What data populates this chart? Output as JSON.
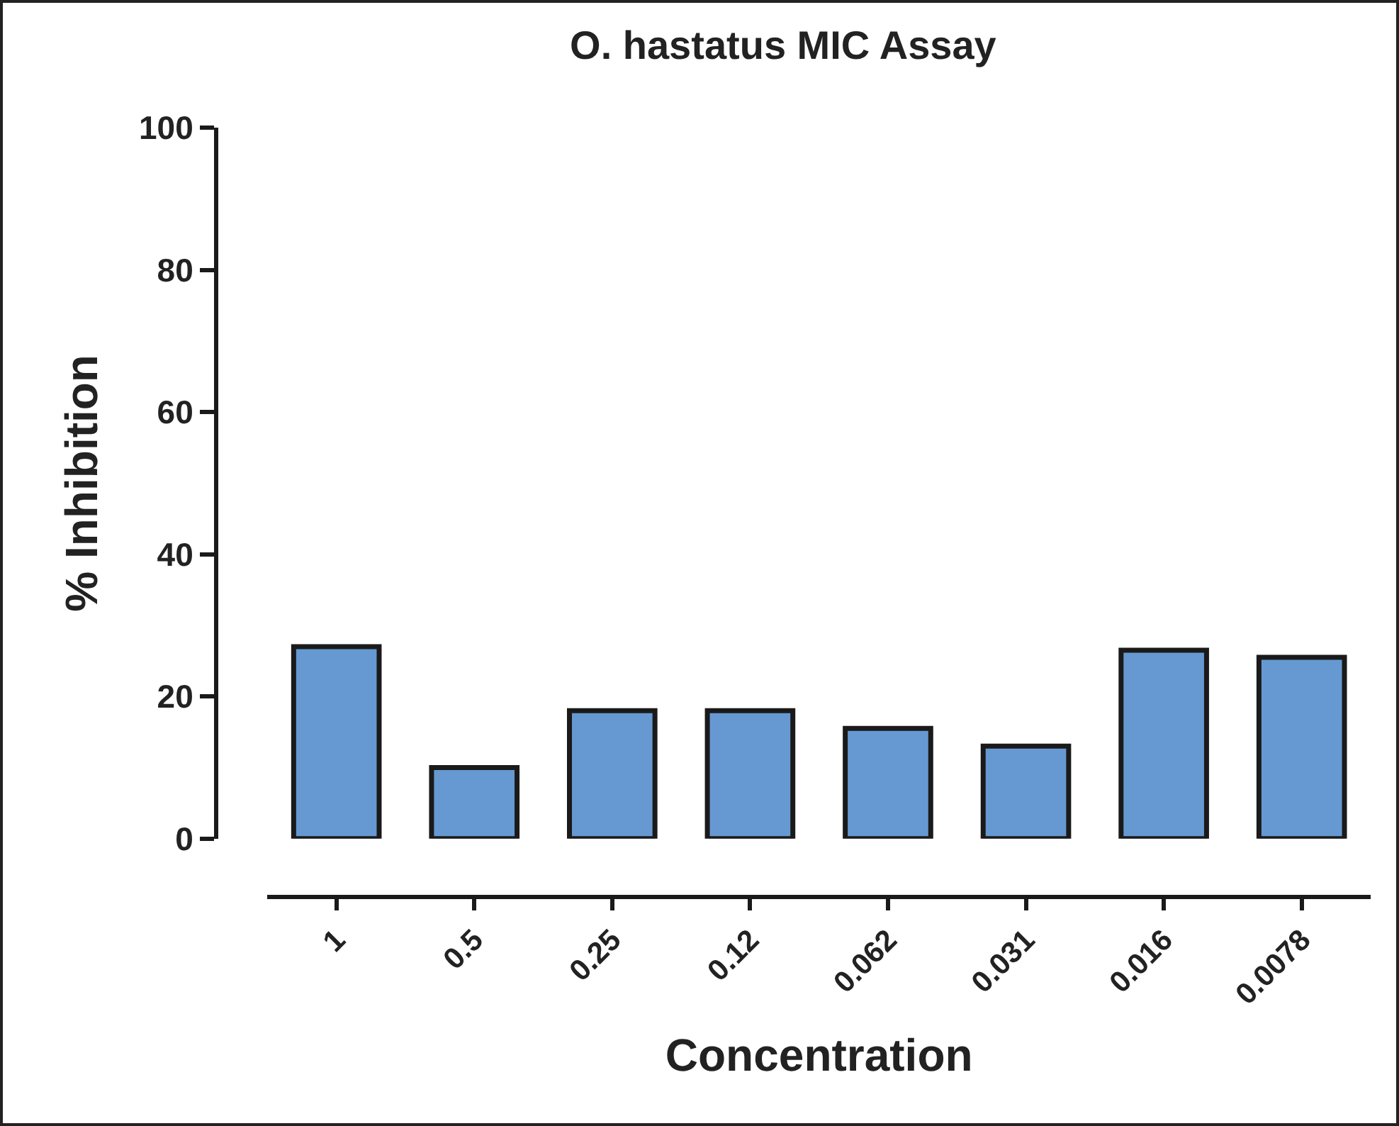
{
  "chart_data": {
    "type": "bar",
    "title": "O. hastatus MIC Assay",
    "xlabel": "Concentration",
    "ylabel": "% Inhibition",
    "categories": [
      "1",
      "0.5",
      "0.25",
      "0.12",
      "0.062",
      "0.031",
      "0.016",
      "0.0078"
    ],
    "values": [
      27,
      10,
      18,
      18,
      15.5,
      13,
      26.5,
      25.5
    ],
    "color": "#6699d1",
    "ylim": [
      0,
      100
    ],
    "yticks": [
      0,
      20,
      40,
      60,
      80,
      100
    ],
    "grid": false
  }
}
